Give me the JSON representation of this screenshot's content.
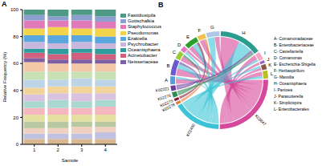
{
  "chart_data": [
    {
      "title": "A",
      "type": "bar",
      "stacked": true,
      "x_label": "Sample",
      "y_label": "Relative Frequency (%)",
      "categories": [
        "1",
        "2",
        "3",
        "4"
      ],
      "ylim": [
        0,
        100
      ],
      "yticks": [
        0,
        20,
        40,
        60,
        80,
        100
      ],
      "series": [
        {
          "name": "Fastidiosipila",
          "color": "#4f9a84",
          "values": [
            4,
            5,
            4,
            5
          ]
        },
        {
          "name": "Gottschalkia",
          "color": "#8d9fd0",
          "values": [
            4,
            3,
            4,
            4
          ]
        },
        {
          "name": "Staphylococcus",
          "color": "#e07ab8",
          "values": [
            6,
            5,
            6,
            5
          ]
        },
        {
          "name": "Pseudomonas",
          "color": "#f3d34a",
          "values": [
            5,
            6,
            5,
            6
          ]
        },
        {
          "name": "Ezakiella",
          "color": "#5aa7e0",
          "values": [
            5,
            6,
            5,
            5
          ]
        },
        {
          "name": "Psychrobacter",
          "color": "#c8b6dc",
          "values": [
            5,
            4,
            5,
            4
          ]
        },
        {
          "name": "Oceanisphaera",
          "color": "#2e9c9c",
          "values": [
            3,
            4,
            3,
            4
          ]
        },
        {
          "name": "Acinetobacter",
          "color": "#d0607e",
          "values": [
            4,
            4,
            5,
            4
          ]
        },
        {
          "name": "Neisseriaceae",
          "color": "#7e5fa3",
          "values": [
            3,
            3,
            3,
            3
          ]
        },
        {
          "name": null,
          "color": "#f4c7a6",
          "values": [
            7,
            6,
            6,
            6
          ]
        },
        {
          "name": null,
          "color": "#c7e0b4",
          "values": [
            6,
            6,
            5,
            6
          ]
        },
        {
          "name": null,
          "color": "#bcd4e6",
          "values": [
            6,
            5,
            6,
            5
          ]
        },
        {
          "name": null,
          "color": "#f2d49b",
          "values": [
            5,
            5,
            5,
            5
          ]
        },
        {
          "name": null,
          "color": "#d9c2e0",
          "values": [
            5,
            5,
            6,
            5
          ]
        },
        {
          "name": null,
          "color": "#a8d8cf",
          "values": [
            5,
            6,
            5,
            5
          ]
        },
        {
          "name": null,
          "color": "#f5b6c0",
          "values": [
            5,
            5,
            5,
            6
          ]
        },
        {
          "name": null,
          "color": "#e6e0a0",
          "values": [
            5,
            5,
            5,
            5
          ]
        },
        {
          "name": null,
          "color": "#b8c8a0",
          "values": [
            5,
            5,
            4,
            4
          ]
        },
        {
          "name": null,
          "color": "#f0d0c0",
          "values": [
            4,
            4,
            5,
            4
          ]
        },
        {
          "name": null,
          "color": "#c0c0e0",
          "values": [
            4,
            4,
            4,
            5
          ]
        },
        {
          "name": null,
          "color": "#d8b890",
          "values": [
            4,
            4,
            4,
            4
          ]
        }
      ]
    },
    {
      "title": "B",
      "type": "chord",
      "nodes": [
        {
          "label": "A",
          "legend_label": "A- Comamonadaceae",
          "color": "#5b9bd5"
        },
        {
          "label": "B",
          "legend_label": "B- Enterobacteriaceae",
          "color": "#6a5acd"
        },
        {
          "label": "C",
          "legend_label": "C- Castellaniella",
          "color": "#9acd32"
        },
        {
          "label": "D",
          "legend_label": "D- Comamonas",
          "color": "#e377c2"
        },
        {
          "label": "E",
          "legend_label": "E- Escherichia-Shigella",
          "color": "#2ca02c"
        },
        {
          "label": "F",
          "legend_label": "F- Herbaspirillum",
          "color": "#f2c14e"
        },
        {
          "label": "G",
          "legend_label": "G- Massilia",
          "color": "#aec7e8"
        },
        {
          "label": "H",
          "legend_label": "H- Oceanisphaera",
          "color": "#2a9d8f"
        },
        {
          "label": "I",
          "legend_label": "I- Pantoea",
          "color": "#f7a8c4"
        },
        {
          "label": "J",
          "legend_label": "J- Parasutterella",
          "color": "#9467bd"
        },
        {
          "label": "K",
          "legend_label": "K- Simplicispira",
          "color": "#8c564b"
        },
        {
          "label": "L",
          "legend_label": "L- Enterobacterales",
          "color": "#bcbd22"
        },
        {
          "label": "K02647",
          "color": "#d6489a"
        },
        {
          "label": "K02450",
          "color": "#3cc4d6"
        },
        {
          "label": "K02278",
          "color": "#e07b39"
        },
        {
          "label": "K02275",
          "color": "#8b1a3a"
        },
        {
          "label": "K02276",
          "color": "#2e8b57"
        },
        {
          "label": "K02221",
          "color": "#6a3d9a"
        }
      ],
      "links": [
        {
          "source": "A",
          "target": "K02647",
          "value": 2
        },
        {
          "source": "A",
          "target": "K02450",
          "value": 1
        },
        {
          "source": "B",
          "target": "K02647",
          "value": 3
        },
        {
          "source": "B",
          "target": "K02450",
          "value": 2
        },
        {
          "source": "B",
          "target": "K02221",
          "value": 1
        },
        {
          "source": "C",
          "target": "K02647",
          "value": 2
        },
        {
          "source": "C",
          "target": "K02276",
          "value": 1
        },
        {
          "source": "D",
          "target": "K02450",
          "value": 1
        },
        {
          "source": "D",
          "target": "K02647",
          "value": 1
        },
        {
          "source": "E",
          "target": "K02647",
          "value": 2
        },
        {
          "source": "E",
          "target": "K02450",
          "value": 2
        },
        {
          "source": "E",
          "target": "K02275",
          "value": 1
        },
        {
          "source": "F",
          "target": "K02647",
          "value": 2
        },
        {
          "source": "F",
          "target": "K02278",
          "value": 1
        },
        {
          "source": "G",
          "target": "K02450",
          "value": 3
        },
        {
          "source": "G",
          "target": "K02647",
          "value": 2
        },
        {
          "source": "H",
          "target": "K02647",
          "value": 8
        },
        {
          "source": "H",
          "target": "K02450",
          "value": 6
        },
        {
          "source": "H",
          "target": "K02221",
          "value": 1
        },
        {
          "source": "H",
          "target": "K02276",
          "value": 1
        },
        {
          "source": "I",
          "target": "K02647",
          "value": 2
        },
        {
          "source": "I",
          "target": "K02450",
          "value": 1
        },
        {
          "source": "J",
          "target": "K02647",
          "value": 1
        },
        {
          "source": "K",
          "target": "K02450",
          "value": 1
        },
        {
          "source": "K",
          "target": "K02647",
          "value": 1
        },
        {
          "source": "L",
          "target": "K02647",
          "value": 2
        },
        {
          "source": "L",
          "target": "K02450",
          "value": 1
        }
      ]
    }
  ]
}
